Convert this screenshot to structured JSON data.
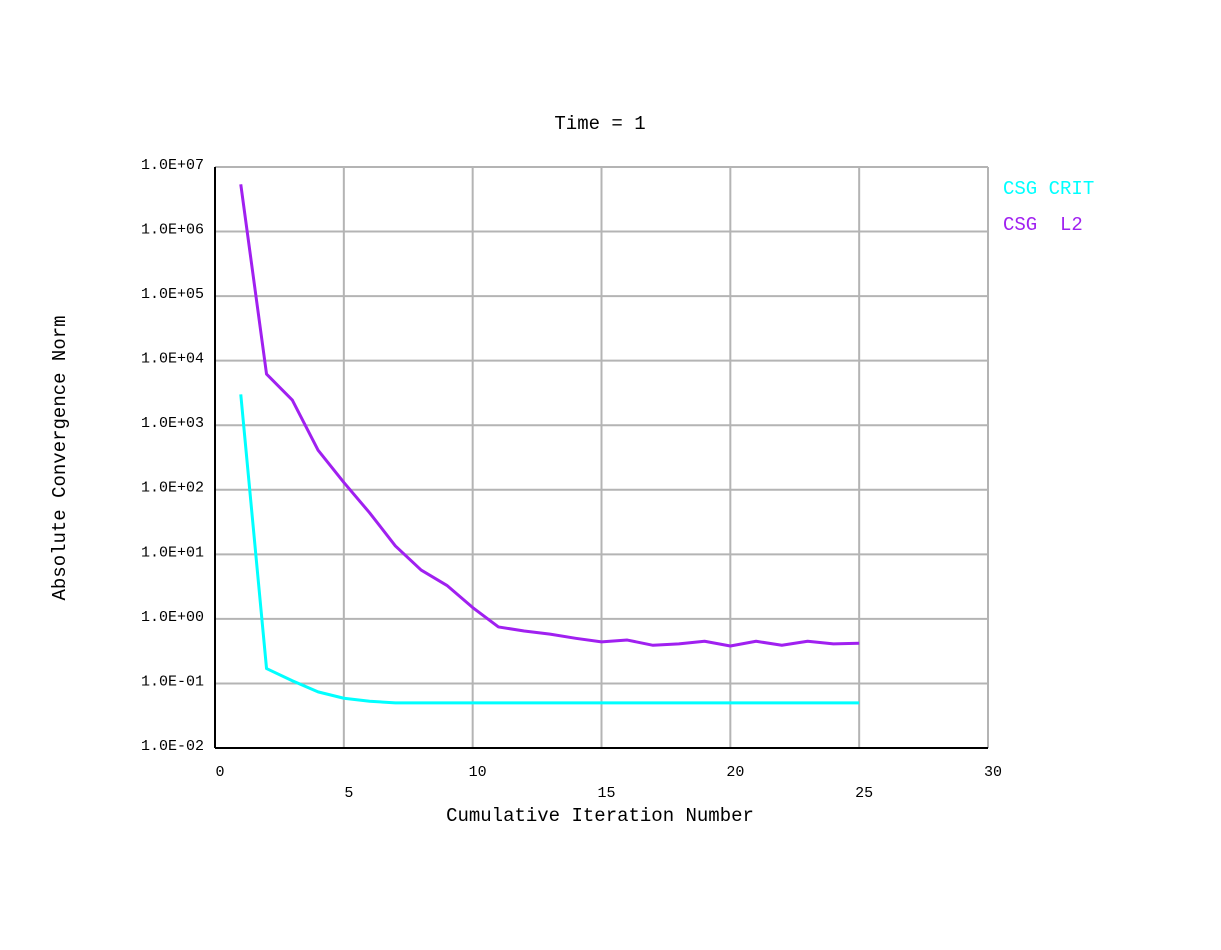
{
  "chart_data": {
    "type": "line",
    "title": "Time = 1",
    "xlabel": "Cumulative Iteration Number",
    "ylabel": "Absolute Convergence Norm",
    "x": [
      1,
      2,
      3,
      4,
      5,
      6,
      7,
      8,
      9,
      10,
      11,
      12,
      13,
      14,
      15,
      16,
      17,
      18,
      19,
      20,
      21,
      22,
      23,
      24,
      25
    ],
    "series": [
      {
        "name": "CSG CRIT",
        "color": "#00ffff",
        "values": [
          3000,
          0.17,
          0.11,
          0.074,
          0.059,
          0.053,
          0.05,
          0.05,
          0.05,
          0.05,
          0.05,
          0.05,
          0.05,
          0.05,
          0.05,
          0.05,
          0.05,
          0.05,
          0.05,
          0.05,
          0.05,
          0.05,
          0.05,
          0.05,
          0.05
        ]
      },
      {
        "name": "CSG  L2",
        "color": "#a020f0",
        "values": [
          5400000,
          6200,
          2450,
          410,
          130,
          44,
          13.5,
          5.7,
          3.3,
          1.5,
          0.75,
          0.65,
          0.58,
          0.5,
          0.44,
          0.47,
          0.39,
          0.41,
          0.45,
          0.38,
          0.45,
          0.39,
          0.45,
          0.41,
          0.42
        ]
      }
    ],
    "xlim": [
      0,
      30
    ],
    "xticks": [
      0,
      5,
      10,
      15,
      20,
      25,
      30
    ],
    "ylim": [
      0.01,
      10000000
    ],
    "log_y": true,
    "yticks": [
      {
        "value": 0.01,
        "label": "1.0E-02"
      },
      {
        "value": 0.1,
        "label": "1.0E-01"
      },
      {
        "value": 1,
        "label": "1.0E+00"
      },
      {
        "value": 10,
        "label": "1.0E+01"
      },
      {
        "value": 100,
        "label": "1.0E+02"
      },
      {
        "value": 1000,
        "label": "1.0E+03"
      },
      {
        "value": 10000,
        "label": "1.0E+04"
      },
      {
        "value": 100000,
        "label": "1.0E+05"
      },
      {
        "value": 1000000,
        "label": "1.0E+06"
      },
      {
        "value": 10000000,
        "label": "1.0E+07"
      }
    ],
    "grid": true,
    "legend": "right"
  }
}
